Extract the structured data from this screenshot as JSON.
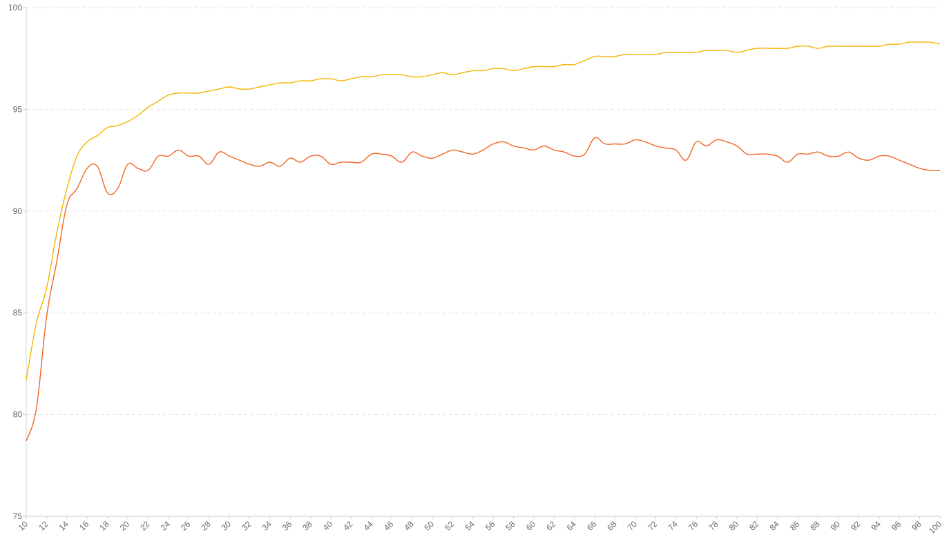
{
  "chart_data": {
    "type": "line",
    "grid": true,
    "ylim": [
      75,
      100
    ],
    "yticks": [
      75,
      80,
      85,
      90,
      95,
      100
    ],
    "x": [
      10,
      11,
      12,
      13,
      14,
      15,
      16,
      17,
      18,
      19,
      20,
      21,
      22,
      23,
      24,
      25,
      26,
      27,
      28,
      29,
      30,
      31,
      32,
      33,
      34,
      35,
      36,
      37,
      38,
      39,
      40,
      41,
      42,
      43,
      44,
      45,
      46,
      47,
      48,
      49,
      50,
      51,
      52,
      53,
      54,
      55,
      56,
      57,
      58,
      59,
      60,
      61,
      62,
      63,
      64,
      65,
      66,
      67,
      68,
      69,
      70,
      71,
      72,
      73,
      74,
      75,
      76,
      77,
      78,
      79,
      80,
      81,
      82,
      83,
      84,
      85,
      86,
      87,
      88,
      89,
      90,
      91,
      92,
      93,
      94,
      95,
      96,
      97,
      98,
      99,
      100
    ],
    "xtick_labels": [
      "10",
      "12",
      "14",
      "16",
      "18",
      "20",
      "22",
      "24",
      "26",
      "28",
      "30",
      "32",
      "34",
      "36",
      "38",
      "40",
      "42",
      "44",
      "46",
      "48",
      "50",
      "52",
      "54",
      "56",
      "58",
      "60",
      "62",
      "64",
      "66",
      "68",
      "70",
      "72",
      "74",
      "76",
      "78",
      "80",
      "82",
      "84",
      "86",
      "88",
      "90",
      "92",
      "94",
      "96",
      "98",
      "100"
    ],
    "series": [
      {
        "color": "#f5b400",
        "values": [
          81.7,
          84.5,
          86.2,
          88.9,
          91.1,
          92.7,
          93.4,
          93.7,
          94.1,
          94.2,
          94.4,
          94.7,
          95.1,
          95.4,
          95.7,
          95.8,
          95.8,
          95.8,
          95.9,
          96.0,
          96.1,
          96.0,
          96.0,
          96.1,
          96.2,
          96.3,
          96.3,
          96.4,
          96.4,
          96.5,
          96.5,
          96.4,
          96.5,
          96.6,
          96.6,
          96.7,
          96.7,
          96.7,
          96.6,
          96.6,
          96.7,
          96.8,
          96.7,
          96.8,
          96.9,
          96.9,
          97.0,
          97.0,
          96.9,
          97.0,
          97.1,
          97.1,
          97.1,
          97.2,
          97.2,
          97.4,
          97.6,
          97.6,
          97.6,
          97.7,
          97.7,
          97.7,
          97.7,
          97.8,
          97.8,
          97.8,
          97.8,
          97.9,
          97.9,
          97.9,
          97.8,
          97.9,
          98.0,
          98.0,
          98.0,
          98.0,
          98.1,
          98.1,
          98.0,
          98.1,
          98.1,
          98.1,
          98.1,
          98.1,
          98.1,
          98.2,
          98.2,
          98.3,
          98.3,
          98.3,
          98.2
        ]
      },
      {
        "color": "#f26522",
        "values": [
          78.7,
          80.3,
          84.8,
          87.5,
          90.3,
          91.1,
          92.1,
          92.2,
          90.9,
          91.1,
          92.3,
          92.1,
          92.0,
          92.7,
          92.7,
          93.0,
          92.7,
          92.7,
          92.3,
          92.9,
          92.7,
          92.5,
          92.3,
          92.2,
          92.4,
          92.2,
          92.6,
          92.4,
          92.7,
          92.7,
          92.3,
          92.4,
          92.4,
          92.4,
          92.8,
          92.8,
          92.7,
          92.4,
          92.9,
          92.7,
          92.6,
          92.8,
          93.0,
          92.9,
          92.8,
          93.0,
          93.3,
          93.4,
          93.2,
          93.1,
          93.0,
          93.2,
          93.0,
          92.9,
          92.7,
          92.8,
          93.6,
          93.3,
          93.3,
          93.3,
          93.5,
          93.4,
          93.2,
          93.1,
          93.0,
          92.5,
          93.4,
          93.2,
          93.5,
          93.4,
          93.2,
          92.8,
          92.8,
          92.8,
          92.7,
          92.4,
          92.8,
          92.8,
          92.9,
          92.7,
          92.7,
          92.9,
          92.6,
          92.5,
          92.7,
          92.7,
          92.5,
          92.3,
          92.1,
          92.0,
          92.0
        ]
      }
    ]
  }
}
